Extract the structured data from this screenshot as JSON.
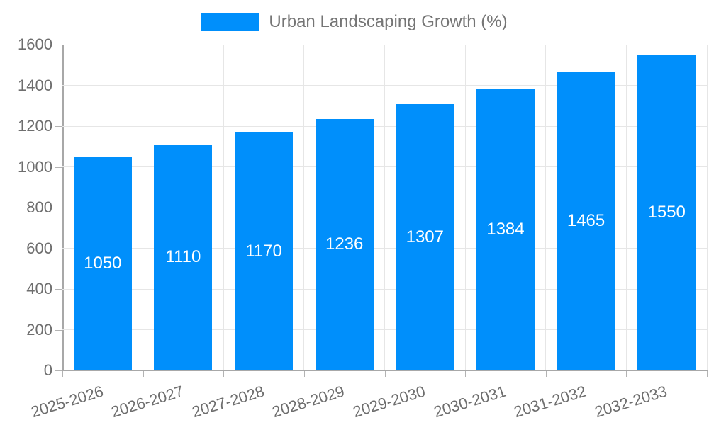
{
  "legend": {
    "series_label": "Urban Landscaping Growth (%)"
  },
  "chart_data": {
    "type": "bar",
    "title": "",
    "categories": [
      "2025-2026",
      "2026-2027",
      "2027-2028",
      "2028-2029",
      "2029-2030",
      "2030-2031",
      "2031-2032",
      "2032-2033"
    ],
    "series": [
      {
        "name": "Urban Landscaping Growth (%)",
        "values": [
          1050,
          1110,
          1170,
          1236,
          1307,
          1384,
          1465,
          1550
        ]
      }
    ],
    "data_labels": [
      "1050",
      "1110",
      "1170",
      "1236",
      "1307",
      "1384",
      "1465",
      "1550"
    ],
    "ylim": [
      0,
      1600
    ],
    "ytick_step": 200,
    "ytick_labels": [
      "0",
      "200",
      "400",
      "600",
      "800",
      "1000",
      "1200",
      "1400",
      "1600"
    ],
    "xlabel": "",
    "ylabel": "",
    "grid": "horizontal-and-vertical",
    "legend_position": "top-center",
    "colors": {
      "bar": "#008FFB",
      "data_label": "#ffffff",
      "axis_label": "#6e6e6e",
      "legend_label": "#757575",
      "gridline": "#e6e6e6",
      "axis_line": "#a8a8a8"
    }
  }
}
